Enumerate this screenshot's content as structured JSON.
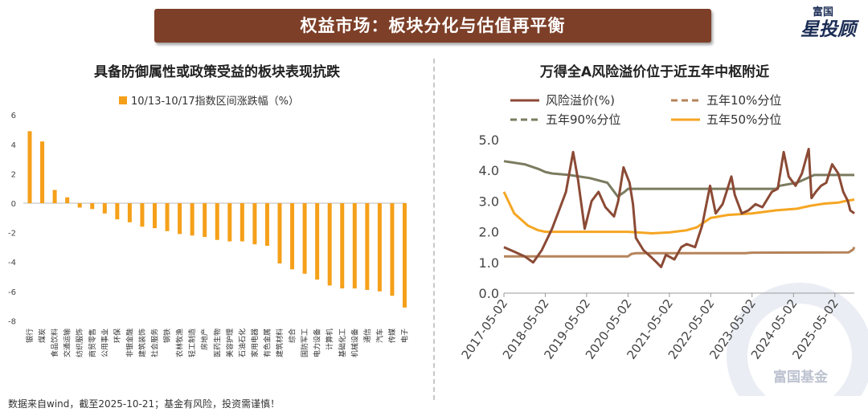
{
  "banner": {
    "title": "权益市场：板块分化与估值再平衡"
  },
  "logo": {
    "top": "富国",
    "main": "星投顾"
  },
  "left_panel": {
    "title": "具备防御属性或政策受益的板块表现抗跌"
  },
  "right_panel": {
    "title": "万得全A风险溢价位于近五年中枢附近"
  },
  "footer": "数据来自wind，截至2025-10-21；基金有风险，投资需谨慎！",
  "watermark": "富国基金",
  "colors": {
    "banner": "#7d3f28",
    "bar": "#f5a01a",
    "premium": "#8b4a35",
    "p10": "#b5835a",
    "p90": "#7b7b60",
    "p50": "#f5a623"
  },
  "chart_data": [
    {
      "type": "bar",
      "legend": "10/13-10/17指数区间涨跌幅（%）",
      "categories": [
        "银行",
        "煤炭",
        "食品饮料",
        "交通运输",
        "纺织服饰",
        "商贸零售",
        "公用事业",
        "环保",
        "非银金融",
        "建筑装饰",
        "社会服务",
        "钢铁",
        "农林牧渔",
        "轻工制造",
        "房地产",
        "医药生物",
        "美容护理",
        "石油石化",
        "家用电器",
        "有色金属",
        "建筑材料",
        "综合",
        "国防军工",
        "电力设备",
        "计算机",
        "基础化工",
        "机械设备",
        "通信",
        "汽车",
        "传媒",
        "电子"
      ],
      "values": [
        4.9,
        4.2,
        0.9,
        0.4,
        -0.3,
        -0.4,
        -0.7,
        -1.1,
        -1.3,
        -1.6,
        -1.7,
        -1.9,
        -2.1,
        -2.2,
        -2.3,
        -2.5,
        -2.6,
        -2.6,
        -2.8,
        -2.9,
        -4.1,
        -4.5,
        -4.8,
        -5.2,
        -5.6,
        -5.8,
        -5.8,
        -5.9,
        -6.0,
        -6.3,
        -7.1
      ],
      "yticks": [
        "6",
        "4",
        "2",
        "0",
        "-2",
        "-4",
        "-6",
        "-8"
      ],
      "ylim": [
        -8,
        6
      ]
    },
    {
      "type": "line",
      "legend": [
        "风险溢价(%)",
        "五年10%分位",
        "五年90%分位",
        "五年50%分位"
      ],
      "xticks": [
        "2017-05-02",
        "2018-05-02",
        "2019-05-02",
        "2020-05-02",
        "2021-05-02",
        "2022-05-02",
        "2023-05-02",
        "2024-05-02",
        "2025-05-02"
      ],
      "yticks": [
        "5.0",
        "4.0",
        "3.0",
        "2.0",
        "1.0",
        "0.0"
      ],
      "ylim": [
        0,
        5
      ],
      "xlim": [
        "2017-05-02",
        "2025-10-21"
      ],
      "series": [
        {
          "name": "风险溢价(%)",
          "points": [
            [
              "2017-05-02",
              1.5
            ],
            [
              "2017-08-01",
              1.35
            ],
            [
              "2017-11-01",
              1.2
            ],
            [
              "2018-01-15",
              1.0
            ],
            [
              "2018-04-01",
              1.4
            ],
            [
              "2018-07-01",
              2.1
            ],
            [
              "2018-09-01",
              2.7
            ],
            [
              "2018-11-01",
              3.3
            ],
            [
              "2019-01-03",
              4.6
            ],
            [
              "2019-02-15",
              3.7
            ],
            [
              "2019-04-15",
              2.1
            ],
            [
              "2019-06-15",
              3.0
            ],
            [
              "2019-08-15",
              3.3
            ],
            [
              "2019-10-15",
              2.8
            ],
            [
              "2019-12-30",
              2.5
            ],
            [
              "2020-02-05",
              3.0
            ],
            [
              "2020-03-23",
              4.1
            ],
            [
              "2020-05-15",
              3.6
            ],
            [
              "2020-06-15",
              2.9
            ],
            [
              "2020-07-10",
              1.8
            ],
            [
              "2020-09-15",
              1.4
            ],
            [
              "2020-11-15",
              1.2
            ],
            [
              "2021-01-10",
              1.0
            ],
            [
              "2021-02-18",
              0.85
            ],
            [
              "2021-04-01",
              1.25
            ],
            [
              "2021-06-15",
              1.1
            ],
            [
              "2021-08-15",
              1.5
            ],
            [
              "2021-10-01",
              1.6
            ],
            [
              "2021-12-15",
              1.5
            ],
            [
              "2022-02-15",
              2.2
            ],
            [
              "2022-04-26",
              3.5
            ],
            [
              "2022-06-15",
              2.6
            ],
            [
              "2022-08-15",
              2.9
            ],
            [
              "2022-10-31",
              3.8
            ],
            [
              "2022-12-01",
              3.2
            ],
            [
              "2023-01-31",
              2.6
            ],
            [
              "2023-04-01",
              2.7
            ],
            [
              "2023-06-01",
              2.9
            ],
            [
              "2023-08-01",
              2.8
            ],
            [
              "2023-10-23",
              3.3
            ],
            [
              "2023-12-15",
              3.4
            ],
            [
              "2024-02-05",
              4.6
            ],
            [
              "2024-03-20",
              3.8
            ],
            [
              "2024-05-20",
              3.5
            ],
            [
              "2024-07-15",
              3.9
            ],
            [
              "2024-09-13",
              4.7
            ],
            [
              "2024-10-08",
              3.1
            ],
            [
              "2024-11-15",
              3.3
            ],
            [
              "2024-12-31",
              3.5
            ],
            [
              "2025-02-15",
              3.6
            ],
            [
              "2025-04-08",
              4.2
            ],
            [
              "2025-06-01",
              3.9
            ],
            [
              "2025-07-15",
              3.3
            ],
            [
              "2025-08-25",
              3.0
            ],
            [
              "2025-09-15",
              2.7
            ],
            [
              "2025-10-21",
              2.6
            ]
          ]
        },
        {
          "name": "五年10%分位",
          "points": [
            [
              "2017-05-02",
              1.2
            ],
            [
              "2020-05-02",
              1.2
            ],
            [
              "2020-06-01",
              1.28
            ],
            [
              "2020-07-15",
              1.3
            ],
            [
              "2023-03-01",
              1.3
            ],
            [
              "2023-05-01",
              1.32
            ],
            [
              "2025-09-01",
              1.33
            ],
            [
              "2025-10-10",
              1.42
            ],
            [
              "2025-10-21",
              1.5
            ]
          ]
        },
        {
          "name": "五年90%分位",
          "points": [
            [
              "2017-05-02",
              4.3
            ],
            [
              "2017-11-01",
              4.2
            ],
            [
              "2018-03-01",
              4.05
            ],
            [
              "2018-05-02",
              3.95
            ],
            [
              "2018-07-01",
              3.9
            ],
            [
              "2018-12-01",
              3.85
            ],
            [
              "2019-06-01",
              3.75
            ],
            [
              "2019-11-01",
              3.6
            ],
            [
              "2020-02-01",
              3.15
            ],
            [
              "2020-04-01",
              3.3
            ],
            [
              "2020-05-02",
              3.4
            ],
            [
              "2023-12-01",
              3.4
            ],
            [
              "2024-01-01",
              3.5
            ],
            [
              "2024-06-01",
              3.6
            ],
            [
              "2024-09-01",
              3.75
            ],
            [
              "2024-11-01",
              3.85
            ],
            [
              "2025-10-21",
              3.85
            ]
          ]
        },
        {
          "name": "五年50%分位",
          "points": [
            [
              "2017-05-02",
              3.3
            ],
            [
              "2017-08-01",
              2.6
            ],
            [
              "2017-12-01",
              2.2
            ],
            [
              "2018-03-01",
              2.05
            ],
            [
              "2018-05-02",
              2.0
            ],
            [
              "2020-05-02",
              2.0
            ],
            [
              "2020-12-01",
              1.95
            ],
            [
              "2021-05-01",
              1.98
            ],
            [
              "2021-10-01",
              2.05
            ],
            [
              "2022-01-01",
              2.15
            ],
            [
              "2022-03-01",
              2.3
            ],
            [
              "2022-05-01",
              2.45
            ],
            [
              "2022-10-01",
              2.55
            ],
            [
              "2023-05-01",
              2.6
            ],
            [
              "2023-12-01",
              2.7
            ],
            [
              "2024-06-01",
              2.75
            ],
            [
              "2024-10-01",
              2.85
            ],
            [
              "2025-02-01",
              2.92
            ],
            [
              "2025-06-01",
              2.95
            ],
            [
              "2025-08-01",
              3.0
            ],
            [
              "2025-10-21",
              3.05
            ]
          ]
        }
      ]
    }
  ]
}
